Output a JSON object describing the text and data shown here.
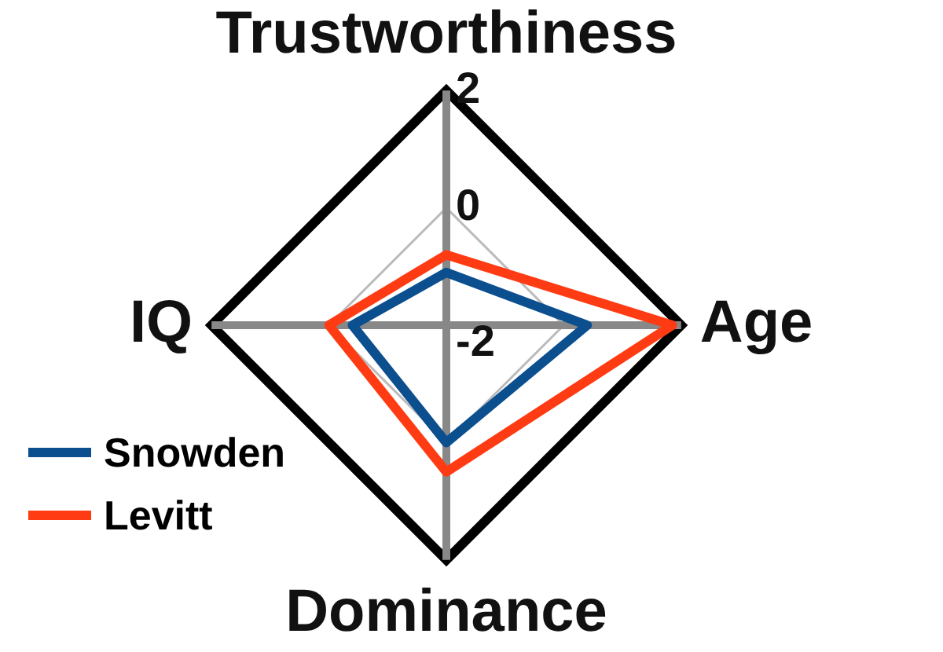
{
  "chart_data": {
    "type": "radar",
    "categories": [
      "Trustworthiness",
      "Age",
      "Dominance",
      "IQ"
    ],
    "series": [
      {
        "name": "Snowden",
        "color": "#0b4f8f",
        "values": [
          -1.1,
          0.4,
          0,
          -0.4
        ]
      },
      {
        "name": "Levitt",
        "color": "#ff3b14",
        "values": [
          -0.8,
          1.85,
          0.5,
          0
        ]
      }
    ],
    "ylim": [
      -2,
      2
    ],
    "yticks": [
      -2,
      0,
      2
    ],
    "grid": true,
    "legend": "bottom left",
    "marker": "none"
  }
}
